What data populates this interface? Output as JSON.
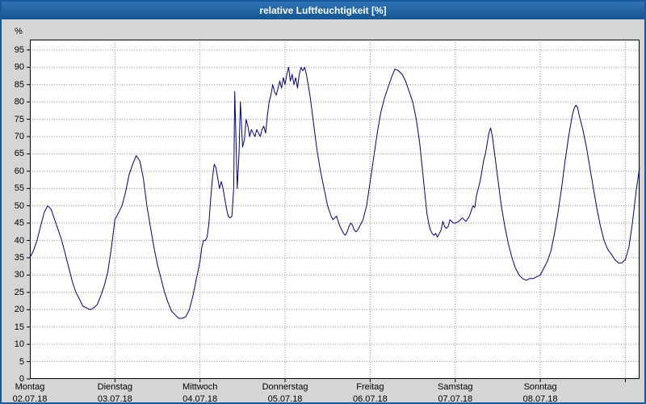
{
  "window": {
    "title": "relative Luftfeuchtigkeit [%]"
  },
  "chart_data": {
    "type": "line",
    "title": "relative Luftfeuchtigkeit [%]",
    "ylabel": "%",
    "ylim": [
      0,
      98
    ],
    "y_ticks": [
      0,
      5,
      10,
      15,
      20,
      25,
      30,
      35,
      40,
      45,
      50,
      55,
      60,
      65,
      70,
      75,
      80,
      85,
      90,
      95
    ],
    "grid": true,
    "legend": "none",
    "x_axis": {
      "unit": "hours",
      "range_hours": [
        0,
        172
      ],
      "hours_per_day": 24,
      "num_days": 7
    },
    "days": [
      {
        "name": "Montag",
        "date": "02.07.18"
      },
      {
        "name": "Dienstag",
        "date": "03.07.18"
      },
      {
        "name": "Mittwoch",
        "date": "04.07.18"
      },
      {
        "name": "Donnerstag",
        "date": "05.07.18"
      },
      {
        "name": "Freitag",
        "date": "06.07.18"
      },
      {
        "name": "Samstag",
        "date": "07.07.18"
      },
      {
        "name": "Sonntag",
        "date": "08.07.18"
      }
    ],
    "colors": {
      "line": "#000080",
      "titlebar": "#17599c",
      "background": "#d5d5d5",
      "plot_background": "#ffffff",
      "grid": "#8f8f8f"
    },
    "series": [
      {
        "name": "relative Luftfeuchtigkeit [%]",
        "points": [
          [
            0,
            35
          ],
          [
            1,
            37
          ],
          [
            2,
            40
          ],
          [
            3,
            44
          ],
          [
            4,
            48
          ],
          [
            5,
            50
          ],
          [
            6,
            49
          ],
          [
            7,
            46
          ],
          [
            8,
            43
          ],
          [
            9,
            40
          ],
          [
            10,
            36
          ],
          [
            11,
            32
          ],
          [
            12,
            28
          ],
          [
            13,
            25
          ],
          [
            14,
            23
          ],
          [
            15,
            21
          ],
          [
            16,
            20.5
          ],
          [
            17,
            20
          ],
          [
            18,
            20.5
          ],
          [
            19,
            21.5
          ],
          [
            20,
            24
          ],
          [
            21,
            27
          ],
          [
            22,
            31
          ],
          [
            23,
            38
          ],
          [
            24,
            46
          ],
          [
            25,
            48
          ],
          [
            26,
            50
          ],
          [
            27,
            54
          ],
          [
            28,
            59
          ],
          [
            29,
            62
          ],
          [
            30,
            64.5
          ],
          [
            31,
            63
          ],
          [
            32,
            58
          ],
          [
            33,
            50
          ],
          [
            34,
            44
          ],
          [
            35,
            38
          ],
          [
            36,
            33
          ],
          [
            37,
            29
          ],
          [
            38,
            25
          ],
          [
            39,
            22
          ],
          [
            40,
            19.5
          ],
          [
            41,
            18.5
          ],
          [
            42,
            17.5
          ],
          [
            43,
            17.5
          ],
          [
            44,
            18
          ],
          [
            45,
            20
          ],
          [
            46,
            24
          ],
          [
            47,
            29
          ],
          [
            48,
            34
          ],
          [
            48.5,
            38
          ],
          [
            49,
            40
          ],
          [
            49.5,
            40
          ],
          [
            50,
            41
          ],
          [
            50.5,
            45
          ],
          [
            51,
            52
          ],
          [
            51.5,
            58
          ],
          [
            52,
            62
          ],
          [
            52.5,
            61
          ],
          [
            53,
            58
          ],
          [
            53.5,
            55
          ],
          [
            54,
            57
          ],
          [
            54.5,
            55
          ],
          [
            55,
            52
          ],
          [
            55.5,
            49
          ],
          [
            56,
            47
          ],
          [
            56.5,
            46.5
          ],
          [
            57,
            47
          ],
          [
            57.5,
            55
          ],
          [
            57.8,
            83
          ],
          [
            58,
            75
          ],
          [
            58.5,
            55
          ],
          [
            59,
            65
          ],
          [
            59.4,
            80
          ],
          [
            60,
            67
          ],
          [
            60.5,
            69
          ],
          [
            61,
            75
          ],
          [
            61.5,
            73
          ],
          [
            62,
            70
          ],
          [
            62.5,
            72
          ],
          [
            63,
            71
          ],
          [
            63.5,
            70
          ],
          [
            64,
            72
          ],
          [
            64.5,
            71
          ],
          [
            65,
            70
          ],
          [
            65.5,
            72
          ],
          [
            66,
            73
          ],
          [
            66.5,
            71
          ],
          [
            67,
            76
          ],
          [
            67.5,
            80
          ],
          [
            68,
            82
          ],
          [
            68.5,
            85
          ],
          [
            69,
            83
          ],
          [
            69.5,
            82
          ],
          [
            70,
            84
          ],
          [
            70.5,
            86
          ],
          [
            71,
            84
          ],
          [
            71.5,
            87
          ],
          [
            72,
            85
          ],
          [
            72.5,
            88
          ],
          [
            73,
            90
          ],
          [
            73.5,
            86
          ],
          [
            74,
            88
          ],
          [
            74.5,
            85
          ],
          [
            75,
            87
          ],
          [
            75.5,
            84
          ],
          [
            76,
            88
          ],
          [
            76.5,
            90
          ],
          [
            77,
            89
          ],
          [
            77.5,
            90
          ],
          [
            78,
            88
          ],
          [
            78.5,
            85
          ],
          [
            79,
            82
          ],
          [
            79.5,
            78
          ],
          [
            80,
            74
          ],
          [
            81,
            66
          ],
          [
            82,
            60
          ],
          [
            83,
            55
          ],
          [
            84,
            50
          ],
          [
            85,
            47
          ],
          [
            85.5,
            46
          ],
          [
            86,
            46.5
          ],
          [
            86.5,
            47
          ],
          [
            87,
            45.5
          ],
          [
            87.5,
            44
          ],
          [
            88,
            43
          ],
          [
            88.5,
            42
          ],
          [
            89,
            41.5
          ],
          [
            89.5,
            42.5
          ],
          [
            90,
            44
          ],
          [
            90.5,
            45
          ],
          [
            91,
            44.5
          ],
          [
            91.5,
            43
          ],
          [
            92,
            42.5
          ],
          [
            92.5,
            43
          ],
          [
            93,
            44
          ],
          [
            94,
            46
          ],
          [
            95,
            50
          ],
          [
            96,
            57
          ],
          [
            97,
            64
          ],
          [
            98,
            71
          ],
          [
            99,
            77
          ],
          [
            100,
            81
          ],
          [
            101,
            84
          ],
          [
            102,
            87
          ],
          [
            103,
            89.5
          ],
          [
            104,
            89
          ],
          [
            105,
            88
          ],
          [
            106,
            86
          ],
          [
            107,
            83
          ],
          [
            108,
            80
          ],
          [
            109,
            75
          ],
          [
            110,
            68
          ],
          [
            111,
            58
          ],
          [
            112,
            48
          ],
          [
            112.5,
            45
          ],
          [
            113,
            43
          ],
          [
            113.5,
            42
          ],
          [
            114,
            41.5
          ],
          [
            114.5,
            42
          ],
          [
            115,
            41
          ],
          [
            116,
            43
          ],
          [
            116.5,
            45.5
          ],
          [
            117,
            44
          ],
          [
            117.5,
            43.5
          ],
          [
            118,
            44
          ],
          [
            118.5,
            46
          ],
          [
            119,
            45.5
          ],
          [
            119.5,
            45
          ],
          [
            120,
            45
          ],
          [
            121,
            45.5
          ],
          [
            122,
            46.5
          ],
          [
            123,
            45.5
          ],
          [
            124,
            47
          ],
          [
            125,
            50
          ],
          [
            125.5,
            49.5
          ],
          [
            126,
            53
          ],
          [
            127,
            57
          ],
          [
            127.5,
            60
          ],
          [
            128,
            63
          ],
          [
            128.5,
            65
          ],
          [
            129,
            68
          ],
          [
            129.5,
            71
          ],
          [
            130,
            72.5
          ],
          [
            130.5,
            70
          ],
          [
            131,
            66
          ],
          [
            131.5,
            62
          ],
          [
            132,
            58
          ],
          [
            133,
            50
          ],
          [
            134,
            44
          ],
          [
            135,
            39
          ],
          [
            136,
            35
          ],
          [
            137,
            32
          ],
          [
            138,
            30
          ],
          [
            139,
            29
          ],
          [
            140,
            28.5
          ],
          [
            141,
            29
          ],
          [
            142,
            29
          ],
          [
            143,
            29.5
          ],
          [
            144,
            30
          ],
          [
            145,
            32
          ],
          [
            146,
            34
          ],
          [
            147,
            37
          ],
          [
            148,
            42
          ],
          [
            149,
            48
          ],
          [
            150,
            55
          ],
          [
            151,
            63
          ],
          [
            152,
            70
          ],
          [
            152.5,
            73
          ],
          [
            153,
            76
          ],
          [
            153.5,
            78
          ],
          [
            154,
            79
          ],
          [
            154.5,
            78.5
          ],
          [
            155,
            76
          ],
          [
            156,
            72
          ],
          [
            157,
            67
          ],
          [
            158,
            61
          ],
          [
            159,
            55
          ],
          [
            160,
            49
          ],
          [
            161,
            44
          ],
          [
            162,
            40
          ],
          [
            163,
            37.5
          ],
          [
            164,
            36
          ],
          [
            165,
            34.5
          ],
          [
            166,
            33.5
          ],
          [
            167,
            33.5
          ],
          [
            168,
            34.5
          ],
          [
            169,
            38
          ],
          [
            170,
            45
          ],
          [
            171,
            54
          ],
          [
            172,
            61
          ]
        ]
      }
    ]
  }
}
